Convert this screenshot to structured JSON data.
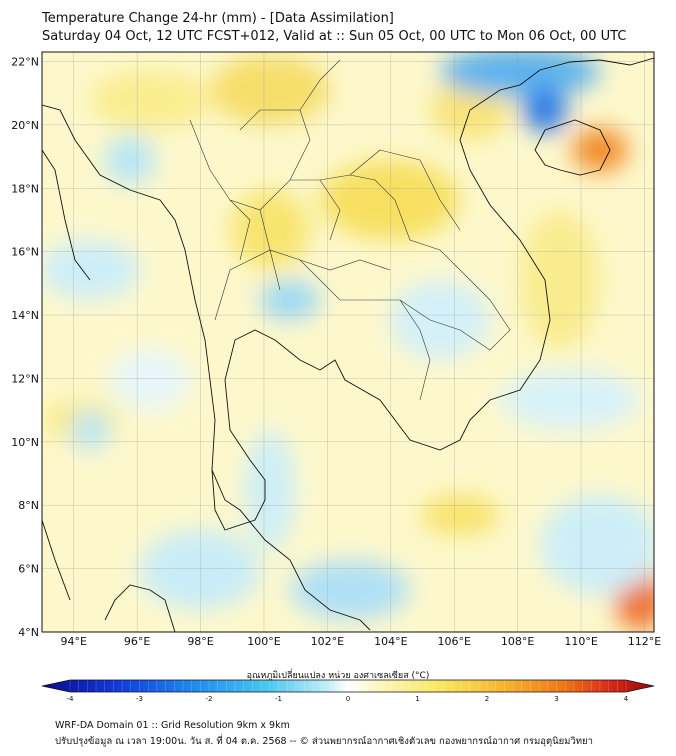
{
  "title": {
    "line1": "Temperature Change 24-hr (mm) - [Data Assimilation]",
    "line2": "Saturday 04 Oct, 12 UTC FCST+012, Valid at :: Sun 05 Oct, 00 UTC to Mon 06 Oct, 00 UTC"
  },
  "map": {
    "lat_ticks": [
      "22°N",
      "20°N",
      "18°N",
      "16°N",
      "14°N",
      "12°N",
      "10°N",
      "8°N",
      "6°N",
      "4°N"
    ],
    "lon_ticks": [
      "94°E",
      "96°E",
      "98°E",
      "100°E",
      "102°E",
      "104°E",
      "106°E",
      "108°E",
      "110°E",
      "112°E"
    ],
    "lat_range": [
      4,
      22.3
    ],
    "lon_range": [
      93,
      112.3
    ],
    "grid": true
  },
  "colorbar": {
    "title": "อุณหภูมิเปลี่ยนแปลง หน่วย องศาเซลเซียส (°C)",
    "ticks": [
      "-4",
      "-3",
      "-2",
      "-1",
      "0",
      "1",
      "2",
      "3",
      "4"
    ],
    "range": [
      -4,
      4
    ],
    "colors": [
      "#0a0a8c",
      "#1238d8",
      "#1e8cf0",
      "#4cc8f0",
      "#bfeaf6",
      "#ffffff",
      "#fbf7c0",
      "#f8e860",
      "#f6b830",
      "#f07818",
      "#d82818",
      "#8c0a0a"
    ]
  },
  "footer": {
    "line1": "WRF-DA Domain 01 :: Grid Resolution 9km x 9km",
    "line2": "ปรับปรุงข้อมูล ณ เวลา 19:00น. วัน ส. ที่ 04 ต.ค. 2568 -- © ส่วนพยากรณ์อากาศเชิงตัวเลข กองพยากรณ์อากาศ กรมอุตุนิยมวิทยา"
  }
}
